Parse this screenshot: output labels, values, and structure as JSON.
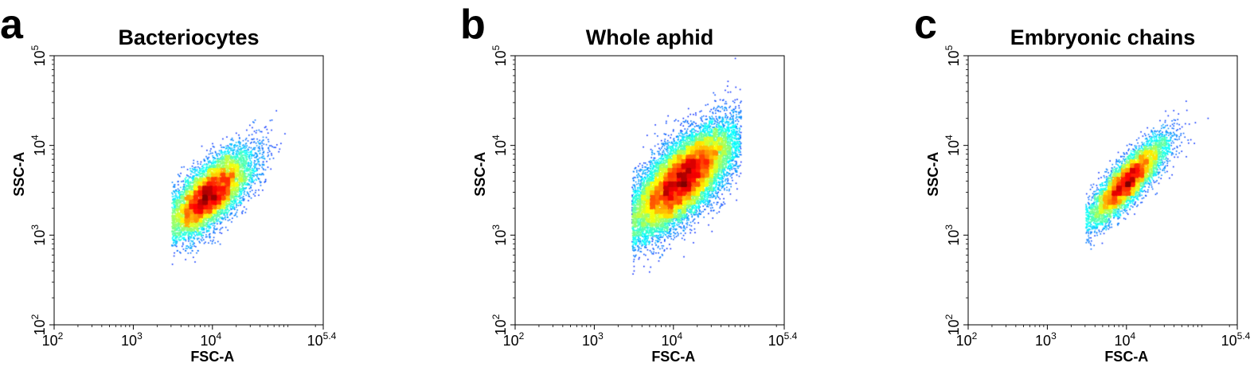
{
  "chart_data": [
    {
      "panel": "a",
      "title": "Bacteriocytes",
      "type": "scatter",
      "xlabel": "FSC-A",
      "ylabel": "SSC-A",
      "x_scale": "log",
      "y_scale": "log",
      "xlim": [
        100,
        251189
      ],
      "ylim": [
        100,
        100000
      ],
      "x_ticks": [
        {
          "base": "10",
          "exp": "2"
        },
        {
          "base": "10",
          "exp": "3"
        },
        {
          "base": "10",
          "exp": "4"
        },
        {
          "base": "10",
          "exp": "5.4"
        }
      ],
      "y_ticks": [
        {
          "base": "10",
          "exp": "2"
        },
        {
          "base": "10",
          "exp": "3"
        },
        {
          "base": "10",
          "exp": "4"
        },
        {
          "base": "10",
          "exp": "5"
        }
      ],
      "color_scale": "density (blue low → green → yellow → red high)",
      "distribution": {
        "points": 9000,
        "log_x_range": [
          3.48,
          5.15
        ],
        "center_log_x": 3.95,
        "center_log_y": 3.45,
        "slope": 0.62,
        "sd_log_x": 0.27,
        "sd_log_y_residual": 0.17,
        "density_peak": {
          "x": 9000,
          "y": 2800
        }
      }
    },
    {
      "panel": "b",
      "title": "Whole aphid",
      "type": "scatter",
      "xlabel": "FSC-A",
      "ylabel": "SSC-A",
      "x_scale": "log",
      "y_scale": "log",
      "xlim": [
        100,
        251189
      ],
      "ylim": [
        100,
        100000
      ],
      "x_ticks": [
        {
          "base": "10",
          "exp": "2"
        },
        {
          "base": "10",
          "exp": "3"
        },
        {
          "base": "10",
          "exp": "4"
        },
        {
          "base": "10",
          "exp": "5.4"
        }
      ],
      "y_ticks": [
        {
          "base": "10",
          "exp": "2"
        },
        {
          "base": "10",
          "exp": "3"
        },
        {
          "base": "10",
          "exp": "4"
        },
        {
          "base": "10",
          "exp": "5"
        }
      ],
      "color_scale": "density (blue low → green → yellow → red high)",
      "distribution": {
        "points": 17000,
        "log_x_range": [
          3.47,
          4.85
        ],
        "center_log_x": 4.1,
        "center_log_y": 3.62,
        "slope": 0.65,
        "sd_log_x": 0.33,
        "sd_log_y_residual": 0.21,
        "density_peak": {
          "x": 14000,
          "y": 4500
        }
      }
    },
    {
      "panel": "c",
      "title": "Embryonic chains",
      "type": "scatter",
      "xlabel": "FSC-A",
      "ylabel": "SSC-A",
      "x_scale": "log",
      "y_scale": "log",
      "xlim": [
        100,
        251189
      ],
      "ylim": [
        100,
        100000
      ],
      "x_ticks": [
        {
          "base": "10",
          "exp": "2"
        },
        {
          "base": "10",
          "exp": "3"
        },
        {
          "base": "10",
          "exp": "4"
        },
        {
          "base": "10",
          "exp": "5.4"
        }
      ],
      "y_ticks": [
        {
          "base": "10",
          "exp": "2"
        },
        {
          "base": "10",
          "exp": "3"
        },
        {
          "base": "10",
          "exp": "4"
        },
        {
          "base": "10",
          "exp": "5"
        }
      ],
      "color_scale": "density (blue low → green → yellow → red high)",
      "distribution": {
        "points": 6500,
        "log_x_range": [
          3.48,
          5.05
        ],
        "center_log_x": 4.0,
        "center_log_y": 3.6,
        "slope": 0.82,
        "sd_log_x": 0.25,
        "sd_log_y_residual": 0.13,
        "density_peak": {
          "x": 10000,
          "y": 4000
        }
      }
    }
  ]
}
